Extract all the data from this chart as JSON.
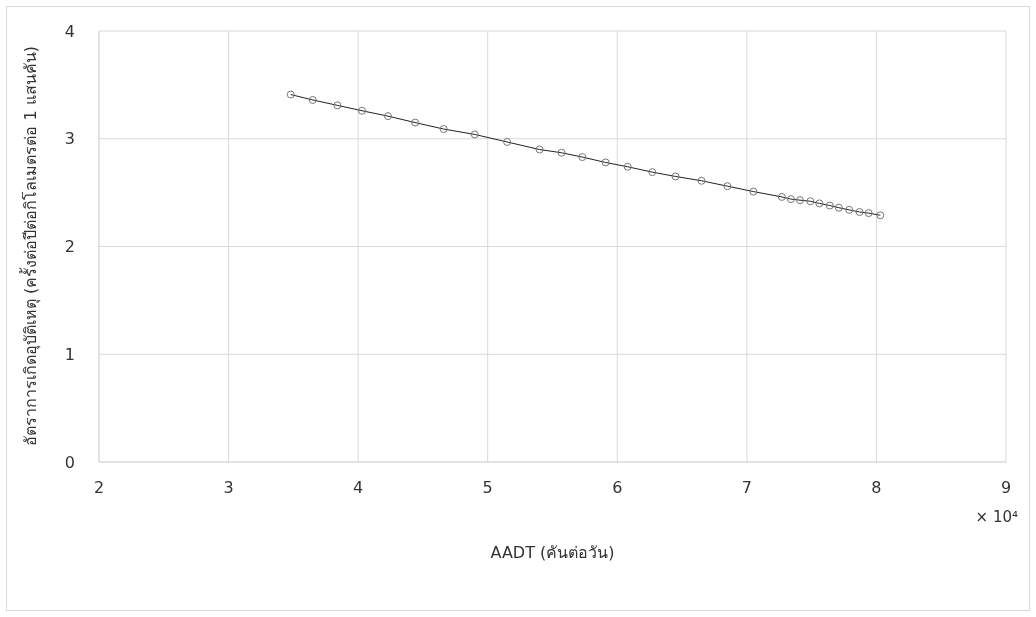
{
  "chart_data": {
    "type": "line",
    "xlabel": "AADT (คันต่อวัน)",
    "ylabel": "อัตราการเกิดอุบัติเหตุ (ครั้งต่อปีต่อกิโลเมตรต่อ 1 แสนคัน)",
    "annotations": [
      "× 10⁴"
    ],
    "xlim": [
      2,
      9
    ],
    "xticks": [
      2,
      3,
      4,
      5,
      6,
      7,
      8,
      9
    ],
    "ylim": [
      0,
      4
    ],
    "yticks": [
      0,
      1,
      2,
      3,
      4
    ],
    "grid": true,
    "marker": "circle",
    "line_style": "solid",
    "x": [
      3.48,
      3.65,
      3.84,
      4.03,
      4.23,
      4.44,
      4.66,
      4.9,
      5.15,
      5.4,
      5.57,
      5.73,
      5.91,
      6.08,
      6.27,
      6.45,
      6.65,
      6.85,
      7.05,
      7.27,
      7.34,
      7.41,
      7.49,
      7.56,
      7.64,
      7.71,
      7.79,
      7.87,
      7.94,
      8.03
    ],
    "series": [
      {
        "color": "#222222",
        "values": [
          3.41,
          3.36,
          3.31,
          3.26,
          3.21,
          3.15,
          3.09,
          3.04,
          2.97,
          2.9,
          2.87,
          2.83,
          2.78,
          2.74,
          2.69,
          2.65,
          2.61,
          2.56,
          2.51,
          2.46,
          2.44,
          2.43,
          2.42,
          2.4,
          2.38,
          2.36,
          2.34,
          2.32,
          2.31,
          2.29
        ]
      }
    ]
  }
}
